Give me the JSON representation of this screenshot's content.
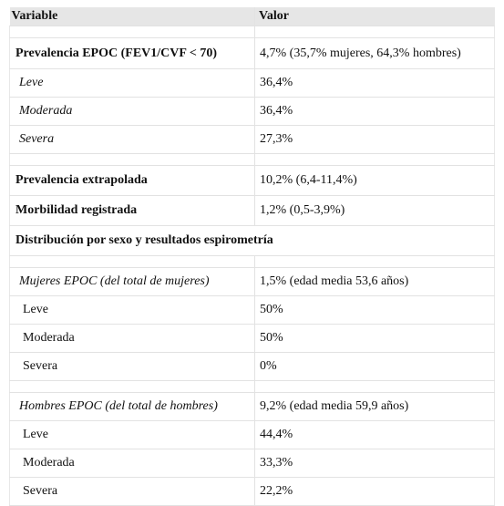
{
  "table": {
    "header": [
      "Variable",
      "Valor"
    ],
    "rows": [
      [
        "Prevalencia EPOC (FEV1/CVF < 70)",
        "4,7% (35,7% mujeres, 64,3% hombres)"
      ],
      [
        "Leve",
        "36,4%"
      ],
      [
        "Moderada",
        "36,4%"
      ],
      [
        "Severa",
        "27,3%"
      ],
      [
        "Prevalencia extrapolada",
        "10,2% (6,4-11,4%)"
      ],
      [
        "Morbilidad registrada",
        "1,2% (0,5-3,9%)"
      ],
      [
        "Distribución por sexo y resultados espirometría"
      ],
      [
        "Mujeres EPOC (del total de mujeres)",
        "1,5% (edad media 53,6 años)"
      ],
      [
        "Leve",
        "50%"
      ],
      [
        "Moderada",
        "50%"
      ],
      [
        "Severa",
        "0%"
      ],
      [
        "Hombres EPOC (del total de hombres)",
        "9,2% (edad media 59,9 años)"
      ],
      [
        "Leve",
        "44,4%"
      ],
      [
        "Moderada",
        "33,3%"
      ],
      [
        "Severa",
        "22,2%"
      ]
    ]
  }
}
